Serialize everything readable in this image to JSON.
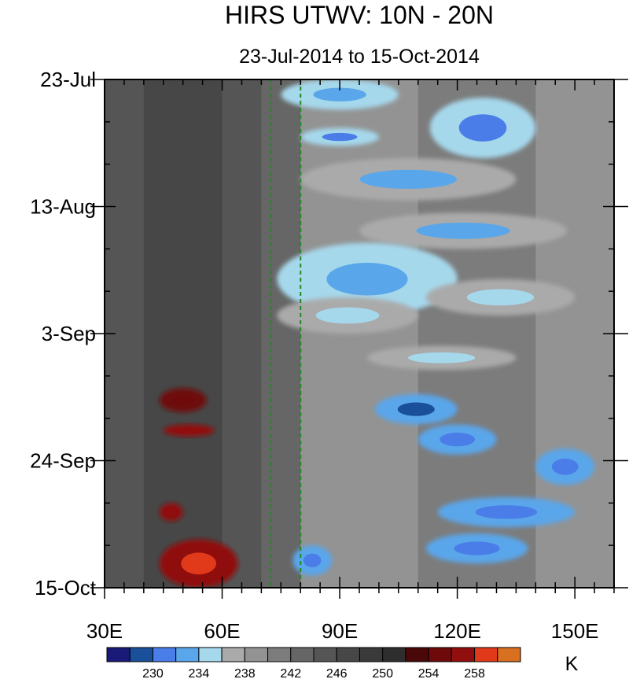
{
  "chart_data": {
    "type": "heatmap",
    "title": "HIRS UTWV: 10N - 20N",
    "subtitle": "23-Jul-2014 to 15-Oct-2014",
    "xlabel": "",
    "ylabel": "",
    "x_range": [
      30,
      160
    ],
    "x_ticks": [
      {
        "value": 30,
        "label": "30E"
      },
      {
        "value": 60,
        "label": "60E"
      },
      {
        "value": 90,
        "label": "90E"
      },
      {
        "value": 120,
        "label": "120E"
      },
      {
        "value": 150,
        "label": "150E"
      }
    ],
    "x_minor_step": 5,
    "y_range": [
      "2014-07-23",
      "2014-10-15"
    ],
    "y_ticks": [
      {
        "value": "2014-07-23",
        "label": "23-Jul"
      },
      {
        "value": "2014-08-13",
        "label": "13-Aug"
      },
      {
        "value": "2014-09-03",
        "label": "3-Sep"
      },
      {
        "value": "2014-09-24",
        "label": "24-Sep"
      },
      {
        "value": "2014-10-15",
        "label": "15-Oct"
      }
    ],
    "y_minor_step_days": 7,
    "y_direction": "time increases downward",
    "reference_lines": [
      {
        "lon": 72.5,
        "color": "#228b22",
        "style": "dashed"
      },
      {
        "lon": 80,
        "color": "#228b22",
        "style": "dashed"
      }
    ],
    "colorbar": {
      "unit": "K",
      "placement": "bottom",
      "levels": [
        228,
        230,
        232,
        234,
        236,
        238,
        240,
        242,
        244,
        246,
        248,
        250,
        252,
        254,
        256,
        258,
        260
      ],
      "colors": [
        "#1a1a78",
        "#1a4f9a",
        "#4a7de8",
        "#5aa6ea",
        "#a6d8ec",
        "#aaaaaa",
        "#939393",
        "#7c7c7c",
        "#666666",
        "#555555",
        "#474747",
        "#3a3a3a",
        "#2e2e2e",
        "#4a0808",
        "#6e0a0a",
        "#900e0e",
        "#e03a1a",
        "#d87020"
      ],
      "labels": [
        {
          "value": 230,
          "label": "230"
        },
        {
          "value": 234,
          "label": "234"
        },
        {
          "value": 238,
          "label": "238"
        },
        {
          "value": 242,
          "label": "242"
        },
        {
          "value": 246,
          "label": "246"
        },
        {
          "value": 250,
          "label": "250"
        },
        {
          "value": 254,
          "label": "254"
        },
        {
          "value": 258,
          "label": "258"
        }
      ]
    },
    "background_field": [
      {
        "lon": 30,
        "value": 243
      },
      {
        "lon": 40,
        "value": 246
      },
      {
        "lon": 50,
        "value": 247
      },
      {
        "lon": 60,
        "value": 246
      },
      {
        "lon": 70,
        "value": 244
      },
      {
        "lon": 80,
        "value": 240
      },
      {
        "lon": 90,
        "value": 239
      },
      {
        "lon": 100,
        "value": 239
      },
      {
        "lon": 110,
        "value": 240
      },
      {
        "lon": 120,
        "value": 240
      },
      {
        "lon": 130,
        "value": 241
      },
      {
        "lon": 140,
        "value": 240
      },
      {
        "lon": 150,
        "value": 239
      },
      {
        "lon": 160,
        "value": 240
      }
    ],
    "features": [
      {
        "lon_start": 75,
        "lon_end": 105,
        "date_start": "2014-07-23",
        "date_end": "2014-07-28",
        "value": 235,
        "core_value": 232
      },
      {
        "lon_start": 113,
        "lon_end": 140,
        "date_start": "2014-07-26",
        "date_end": "2014-08-05",
        "value": 234,
        "core_value": 230
      },
      {
        "lon_start": 80,
        "lon_end": 100,
        "date_start": "2014-07-31",
        "date_end": "2014-08-03",
        "value": 235,
        "core_value": 231
      },
      {
        "lon_start": 80,
        "lon_end": 135,
        "date_start": "2014-08-05",
        "date_end": "2014-08-12",
        "value": 236,
        "core_value": 233
      },
      {
        "lon_start": 95,
        "lon_end": 148,
        "date_start": "2014-08-14",
        "date_end": "2014-08-20",
        "value": 236,
        "core_value": 233
      },
      {
        "lon_start": 74,
        "lon_end": 120,
        "date_start": "2014-08-19",
        "date_end": "2014-08-31",
        "value": 235,
        "core_value": 233
      },
      {
        "lon_start": 74,
        "lon_end": 110,
        "date_start": "2014-08-28",
        "date_end": "2014-09-03",
        "value": 236,
        "core_value": 234
      },
      {
        "lon_start": 112,
        "lon_end": 150,
        "date_start": "2014-08-25",
        "date_end": "2014-08-31",
        "value": 236,
        "core_value": 234
      },
      {
        "lon_start": 97,
        "lon_end": 135,
        "date_start": "2014-09-05",
        "date_end": "2014-09-09",
        "value": 236,
        "core_value": 234
      },
      {
        "lon_start": 99,
        "lon_end": 120,
        "date_start": "2014-09-13",
        "date_end": "2014-09-18",
        "value": 232,
        "core_value": 229
      },
      {
        "lon_start": 110,
        "lon_end": 130,
        "date_start": "2014-09-18",
        "date_end": "2014-09-23",
        "value": 233,
        "core_value": 230
      },
      {
        "lon_start": 140,
        "lon_end": 155,
        "date_start": "2014-09-22",
        "date_end": "2014-09-28",
        "value": 233,
        "core_value": 230
      },
      {
        "lon_start": 115,
        "lon_end": 150,
        "date_start": "2014-09-30",
        "date_end": "2014-10-05",
        "value": 233,
        "core_value": 230
      },
      {
        "lon_start": 112,
        "lon_end": 138,
        "date_start": "2014-10-06",
        "date_end": "2014-10-11",
        "value": 233,
        "core_value": 230
      },
      {
        "lon_start": 78,
        "lon_end": 88,
        "date_start": "2014-10-08",
        "date_end": "2014-10-13",
        "value": 233,
        "core_value": 230
      },
      {
        "lon_start": 44,
        "lon_end": 56,
        "date_start": "2014-09-12",
        "date_end": "2014-09-16",
        "value": 255,
        "core_value": 255
      },
      {
        "lon_start": 45,
        "lon_end": 58,
        "date_start": "2014-09-18",
        "date_end": "2014-09-20",
        "value": 256,
        "core_value": 257
      },
      {
        "lon_start": 44,
        "lon_end": 50,
        "date_start": "2014-10-01",
        "date_end": "2014-10-04",
        "value": 256,
        "core_value": 256
      },
      {
        "lon_start": 44,
        "lon_end": 64,
        "date_start": "2014-10-07",
        "date_end": "2014-10-15",
        "value": 256,
        "core_value": 259
      }
    ]
  }
}
